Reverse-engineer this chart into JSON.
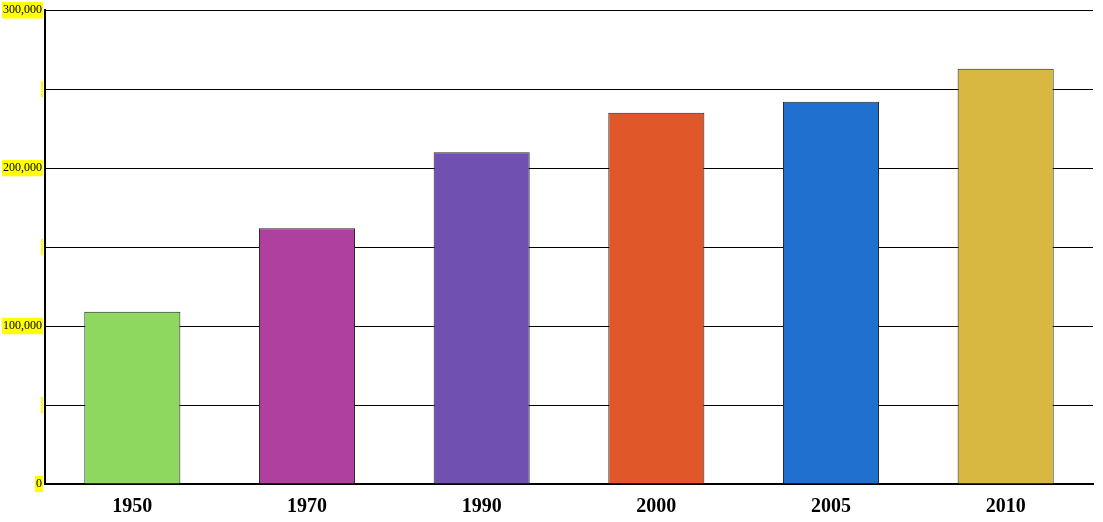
{
  "chart_data": {
    "type": "bar",
    "categories": [
      "1950",
      "1970",
      "1990",
      "2000",
      "2005",
      "2010"
    ],
    "values": [
      109000,
      162000,
      210000,
      235000,
      242000,
      263000
    ],
    "colors": [
      "#8fd860",
      "#b040a0",
      "#7050b0",
      "#e0582a",
      "#2070d0",
      "#d8b840"
    ],
    "ylim": [
      0,
      300000
    ],
    "yticks": [
      0,
      {
        "value": 50000,
        "label": null
      },
      {
        "value": 100000,
        "label": "100,000"
      },
      {
        "value": 150000,
        "label": null
      },
      {
        "value": 200000,
        "label": "200,000"
      },
      {
        "value": 250000,
        "label": null
      },
      {
        "value": 300000,
        "label": "300,000"
      }
    ],
    "grid": "y"
  }
}
